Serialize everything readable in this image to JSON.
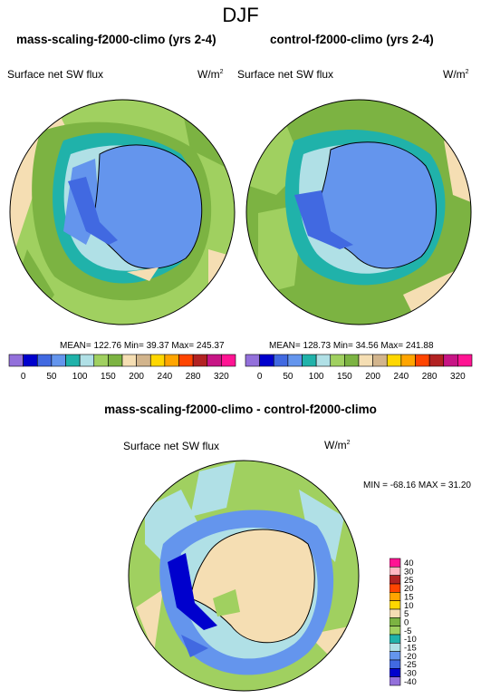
{
  "figure_title": "DJF",
  "panels": [
    {
      "title": "mass-scaling-f2000-climo (yrs 2-4)",
      "variable": "Surface net SW flux",
      "units": "W/m",
      "units_exp": "2",
      "stats": "MEAN= 122.76  Min=  39.37  Max= 245.37"
    },
    {
      "title": "control-f2000-climo (yrs 2-4)",
      "variable": "Surface net SW flux",
      "units": "W/m",
      "units_exp": "2",
      "stats": "MEAN= 128.73  Min=  34.56  Max= 241.88"
    }
  ],
  "diff_panel": {
    "title": "mass-scaling-f2000-climo - control-f2000-climo",
    "variable": "Surface net SW flux",
    "units": "W/m",
    "units_exp": "2",
    "minmax": "MIN = -68.16 MAX =  31.20"
  },
  "colorbar_abs": {
    "colors": [
      "#9370db",
      "#0000cd",
      "#4169e1",
      "#6495ed",
      "#20b2aa",
      "#b0e0e6",
      "#a0d060",
      "#7cb342",
      "#f5deb3",
      "#d2b48c",
      "#ffd700",
      "#ffa500",
      "#ff4500",
      "#b22222",
      "#c71585",
      "#ff1493"
    ],
    "labels": [
      "0",
      "50",
      "100",
      "150",
      "200",
      "240",
      "280",
      "320"
    ]
  },
  "colorbar_diff": {
    "colors": [
      "#ff1493",
      "#ffb6c1",
      "#b22222",
      "#ff4500",
      "#ffa500",
      "#ffd700",
      "#f5deb3",
      "#7cb342",
      "#a0d060",
      "#20b2aa",
      "#b0e0e6",
      "#6495ed",
      "#4169e1",
      "#0000cd",
      "#9370db"
    ],
    "labels": [
      "40",
      "30",
      "25",
      "20",
      "15",
      "10",
      "5",
      "0",
      "-5",
      "-10",
      "-15",
      "-20",
      "-25",
      "-30",
      "-40"
    ]
  }
}
